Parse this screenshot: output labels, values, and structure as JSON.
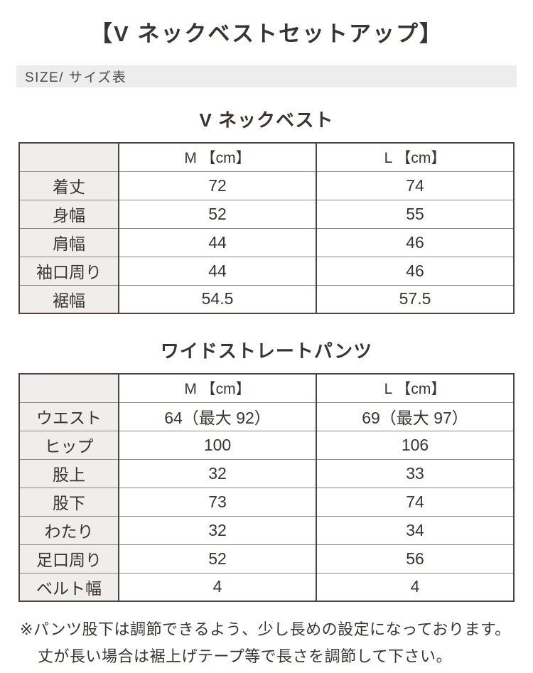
{
  "page": {
    "title": "【V ネックベストセットアップ】",
    "size_bar_label": "SIZE/ サイズ表"
  },
  "tables": [
    {
      "heading": "V ネックベスト",
      "columns": [
        "",
        "M 【cm】",
        "L 【cm】"
      ],
      "rows": [
        {
          "label": "着丈",
          "m": "72",
          "l": "74"
        },
        {
          "label": "身幅",
          "m": "52",
          "l": "55"
        },
        {
          "label": "肩幅",
          "m": "44",
          "l": "46"
        },
        {
          "label": "袖口周り",
          "m": "44",
          "l": "46"
        },
        {
          "label": "裾幅",
          "m": "54.5",
          "l": "57.5"
        }
      ]
    },
    {
      "heading": "ワイドストレートパンツ",
      "columns": [
        "",
        "M 【cm】",
        "L 【cm】"
      ],
      "rows": [
        {
          "label": "ウエスト",
          "m": "64（最大 92）",
          "l": "69（最大 97）"
        },
        {
          "label": "ヒップ",
          "m": "100",
          "l": "106"
        },
        {
          "label": "股上",
          "m": "32",
          "l": "33"
        },
        {
          "label": "股下",
          "m": "73",
          "l": "74"
        },
        {
          "label": "わたり",
          "m": "32",
          "l": "34"
        },
        {
          "label": "足口周り",
          "m": "52",
          "l": "56"
        },
        {
          "label": "ベルト幅",
          "m": "4",
          "l": "4"
        }
      ]
    }
  ],
  "footnote": {
    "line1": "※パンツ股下は調節できるよう、少し長めの設定になっております。",
    "line2": "丈が長い場合は裾上げテープ等で長さを調節して下さい。"
  },
  "colors": {
    "text": "#3a3431",
    "size_bar_bg": "#ededed",
    "label_cell_bg": "#efeeec",
    "border_dark": "#4b4542",
    "border_light": "#8e8984"
  }
}
